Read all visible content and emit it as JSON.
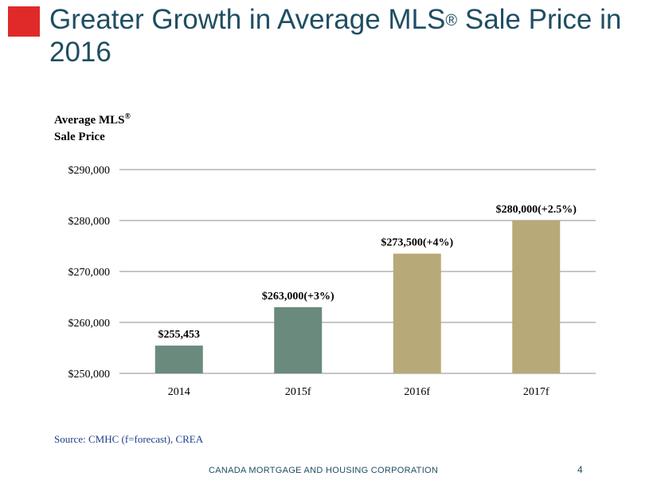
{
  "slide": {
    "title_main": "Greater Growth in Average MLS",
    "title_sup": "®",
    "title_rest": " Sale Price in 2016",
    "source": "Source:  CMHC (f=forecast), CREA",
    "footer": "CANADA MORTGAGE AND HOUSING CORPORATION",
    "page_number": "4",
    "colors": {
      "accent_square": "#e02a2a",
      "title": "#1f4e63"
    }
  },
  "chart_data": {
    "type": "bar",
    "ylabel_line1": "Average MLS",
    "ylabel_sup": "®",
    "ylabel_line2": "Sale Price",
    "categories": [
      "2014",
      "2015f",
      "2016f",
      "2017f"
    ],
    "values": [
      255453,
      263000,
      273500,
      280000
    ],
    "data_labels": [
      "$255,453",
      "$263,000(+3%)",
      "$273,500(+4%)",
      "$280,000(+2.5%)"
    ],
    "bar_colors": [
      "#6b8a7e",
      "#6b8a7e",
      "#b8a978",
      "#b8a978"
    ],
    "ylim": [
      250000,
      290000
    ],
    "yticks": [
      250000,
      260000,
      270000,
      280000,
      290000
    ],
    "ytick_labels": [
      "$250,000",
      "$260,000",
      "$270,000",
      "$280,000",
      "$290,000"
    ],
    "grid": true,
    "legend": "none"
  }
}
